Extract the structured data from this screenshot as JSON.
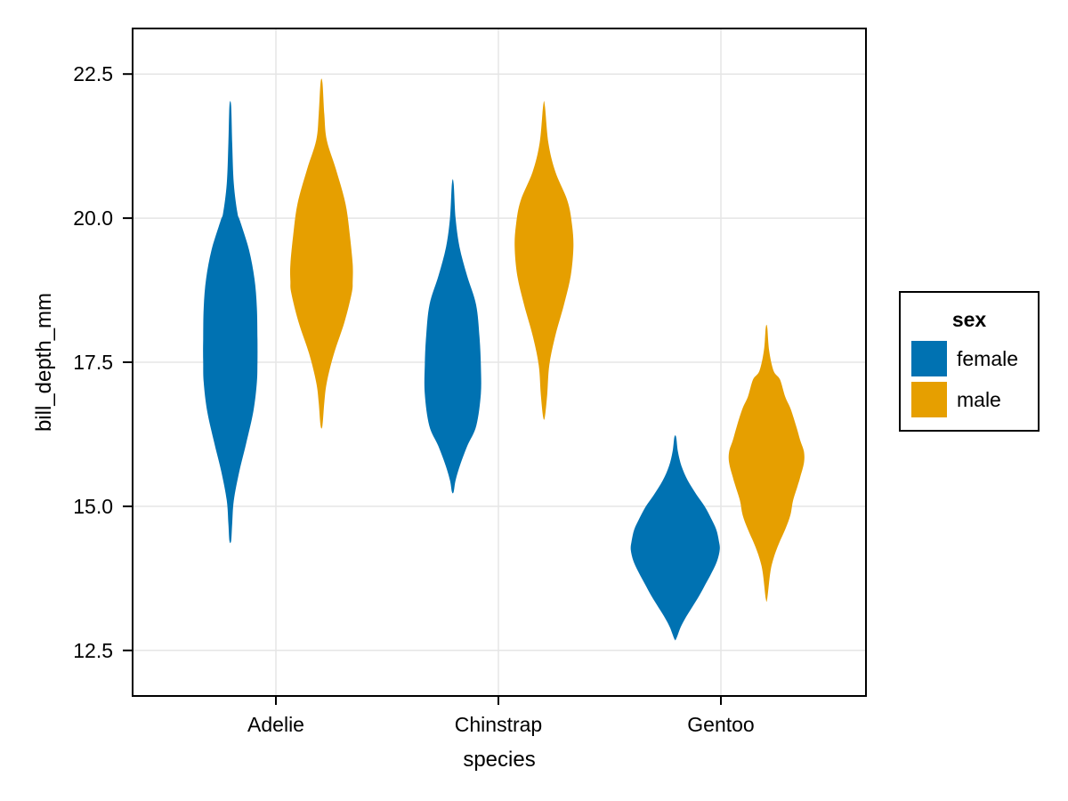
{
  "chart_data": {
    "type": "violin",
    "title": "",
    "xlabel": "species",
    "ylabel": "bill_depth_mm",
    "categories": [
      "Adelie",
      "Chinstrap",
      "Gentoo"
    ],
    "yticks": [
      22.5,
      20.0,
      17.5,
      15.0,
      12.5
    ],
    "ytick_labels": [
      "22.5",
      "20.0",
      "17.5",
      "15.0",
      "12.5"
    ],
    "ylim": [
      11.71,
      23.29
    ],
    "xlim": [
      0.356,
      3.652
    ],
    "grid": true,
    "background": "#ffffff",
    "panel_border_color": "#000000",
    "grid_color": "#e5e5e5",
    "tick_color": "#000000",
    "legend": {
      "title": "sex",
      "position": "right",
      "entries": [
        {
          "label": "female",
          "color": "#0072B2"
        },
        {
          "label": "male",
          "color": "#E69F00"
        }
      ]
    },
    "series": [
      {
        "name": "female",
        "color": "#0072B2",
        "dodge_offset": -0.205,
        "violins": [
          {
            "category": "Adelie",
            "max_halfwidth": 0.122,
            "profile": [
              [
                21.95,
                0.03
              ],
              [
                21.3,
                0.07
              ],
              [
                20.6,
                0.13
              ],
              [
                20.1,
                0.26
              ],
              [
                19.95,
                0.36
              ],
              [
                19.45,
                0.69
              ],
              [
                18.95,
                0.89
              ],
              [
                18.45,
                0.98
              ],
              [
                17.9,
                1.0
              ],
              [
                17.5,
                1.0
              ],
              [
                17.15,
                0.98
              ],
              [
                16.65,
                0.85
              ],
              [
                16.1,
                0.59
              ],
              [
                15.6,
                0.33
              ],
              [
                15.1,
                0.13
              ],
              [
                14.7,
                0.07
              ],
              [
                14.4,
                0.03
              ]
            ]
          },
          {
            "category": "Chinstrap",
            "max_halfwidth": 0.126,
            "profile": [
              [
                20.6,
                0.03
              ],
              [
                20.0,
                0.1
              ],
              [
                19.5,
                0.24
              ],
              [
                19.0,
                0.51
              ],
              [
                18.5,
                0.83
              ],
              [
                17.95,
                0.95
              ],
              [
                17.45,
                1.0
              ],
              [
                16.95,
                1.0
              ],
              [
                16.4,
                0.84
              ],
              [
                16.05,
                0.52
              ],
              [
                15.7,
                0.25
              ],
              [
                15.45,
                0.1
              ],
              [
                15.25,
                0.03
              ]
            ]
          },
          {
            "category": "Gentoo",
            "max_halfwidth": 0.2,
            "profile": [
              [
                16.2,
                0.02
              ],
              [
                15.95,
                0.06
              ],
              [
                15.7,
                0.14
              ],
              [
                15.45,
                0.28
              ],
              [
                15.2,
                0.48
              ],
              [
                15.0,
                0.66
              ],
              [
                14.8,
                0.8
              ],
              [
                14.6,
                0.92
              ],
              [
                14.4,
                0.98
              ],
              [
                14.25,
                1.0
              ],
              [
                14.05,
                0.94
              ],
              [
                13.85,
                0.82
              ],
              [
                13.65,
                0.68
              ],
              [
                13.45,
                0.54
              ],
              [
                13.25,
                0.38
              ],
              [
                13.05,
                0.22
              ],
              [
                12.9,
                0.12
              ],
              [
                12.7,
                0.02
              ]
            ]
          }
        ]
      },
      {
        "name": "male",
        "color": "#E69F00",
        "dodge_offset": 0.205,
        "violins": [
          {
            "category": "Adelie",
            "max_halfwidth": 0.14,
            "profile": [
              [
                22.35,
                0.03
              ],
              [
                21.8,
                0.09
              ],
              [
                21.35,
                0.17
              ],
              [
                20.85,
                0.46
              ],
              [
                20.25,
                0.77
              ],
              [
                19.7,
                0.91
              ],
              [
                19.2,
                1.0
              ],
              [
                18.9,
                1.0
              ],
              [
                18.7,
                0.97
              ],
              [
                18.2,
                0.74
              ],
              [
                17.65,
                0.4
              ],
              [
                17.15,
                0.17
              ],
              [
                16.8,
                0.09
              ],
              [
                16.4,
                0.03
              ]
            ]
          },
          {
            "category": "Chinstrap",
            "max_halfwidth": 0.132,
            "profile": [
              [
                21.95,
                0.03
              ],
              [
                21.3,
                0.15
              ],
              [
                20.8,
                0.39
              ],
              [
                20.3,
                0.8
              ],
              [
                19.9,
                0.95
              ],
              [
                19.5,
                1.0
              ],
              [
                19.0,
                0.91
              ],
              [
                18.5,
                0.68
              ],
              [
                17.95,
                0.38
              ],
              [
                17.45,
                0.18
              ],
              [
                16.95,
                0.11
              ],
              [
                16.55,
                0.03
              ]
            ]
          },
          {
            "category": "Gentoo",
            "max_halfwidth": 0.168,
            "profile": [
              [
                18.1,
                0.02
              ],
              [
                17.7,
                0.07
              ],
              [
                17.35,
                0.19
              ],
              [
                17.2,
                0.36
              ],
              [
                16.9,
                0.5
              ],
              [
                16.7,
                0.64
              ],
              [
                16.4,
                0.79
              ],
              [
                16.15,
                0.9
              ],
              [
                15.95,
                1.0
              ],
              [
                15.75,
                1.0
              ],
              [
                15.5,
                0.9
              ],
              [
                15.35,
                0.83
              ],
              [
                15.1,
                0.71
              ],
              [
                14.85,
                0.64
              ],
              [
                14.6,
                0.5
              ],
              [
                14.35,
                0.33
              ],
              [
                14.1,
                0.19
              ],
              [
                13.85,
                0.1
              ],
              [
                13.4,
                0.02
              ]
            ]
          }
        ]
      }
    ]
  }
}
